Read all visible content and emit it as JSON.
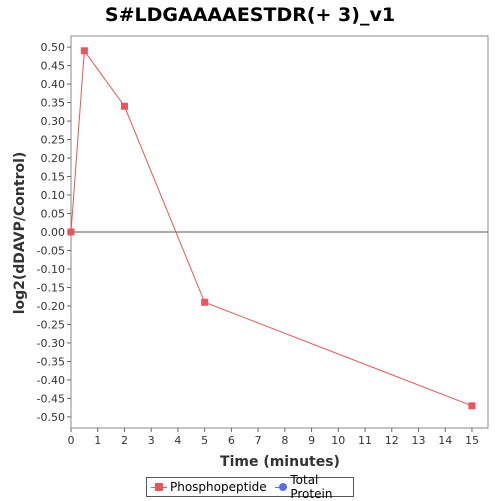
{
  "chart_data": {
    "type": "line",
    "title": "S#LDGAAAAESTDR(+ 3)_v1",
    "xlabel": "Time (minutes)",
    "ylabel": "log2(dDAVP/Control)",
    "xlim": [
      0,
      15.6
    ],
    "ylim": [
      -0.53,
      0.53
    ],
    "x_ticks": [
      0,
      1,
      2,
      3,
      4,
      5,
      6,
      7,
      8,
      9,
      10,
      11,
      12,
      13,
      14,
      15
    ],
    "y_ticks": [
      0.5,
      0.45,
      0.4,
      0.35,
      0.3,
      0.25,
      0.2,
      0.15,
      0.1,
      0.05,
      0.0,
      -0.05,
      -0.1,
      -0.15,
      -0.2,
      -0.25,
      -0.3,
      -0.35,
      -0.4,
      -0.45,
      -0.5
    ],
    "y_tick_labels": [
      "0.50",
      "0.45",
      "0.40",
      "0.35",
      "0.30",
      "0.25",
      "0.20",
      "0.15",
      "0.10",
      "0.05",
      "0.00",
      "-0.05",
      "-0.10",
      "-0.15",
      "-0.20",
      "-0.25",
      "-0.30",
      "-0.35",
      "-0.40",
      "-0.45",
      "-0.50"
    ],
    "zero_line": true,
    "grid": false,
    "legend_position": "bottom",
    "series": [
      {
        "name": "Phosphopeptide",
        "color": "#e8555a",
        "marker": "square",
        "x": [
          0,
          0.5,
          2,
          5,
          15
        ],
        "y": [
          0.0,
          0.49,
          0.34,
          -0.19,
          -0.47
        ]
      },
      {
        "name": "Total Protein",
        "color": "#5a6ee8",
        "marker": "circle",
        "x": [],
        "y": []
      }
    ]
  }
}
